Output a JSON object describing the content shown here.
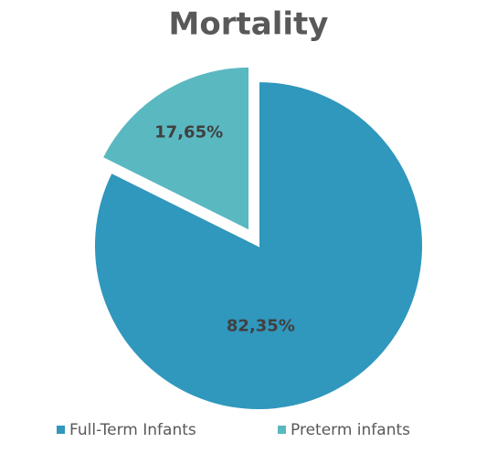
{
  "chart_data": {
    "type": "pie",
    "title": "Mortality",
    "categories": [
      "Full-Term Infants",
      "Preterm infants"
    ],
    "values": [
      82.35,
      17.65
    ],
    "value_labels": [
      "82,35%",
      "17,65%"
    ],
    "colors": [
      "#3097bd",
      "#5ab8c0"
    ],
    "exploded": [
      false,
      true
    ],
    "legend": "bottom"
  }
}
